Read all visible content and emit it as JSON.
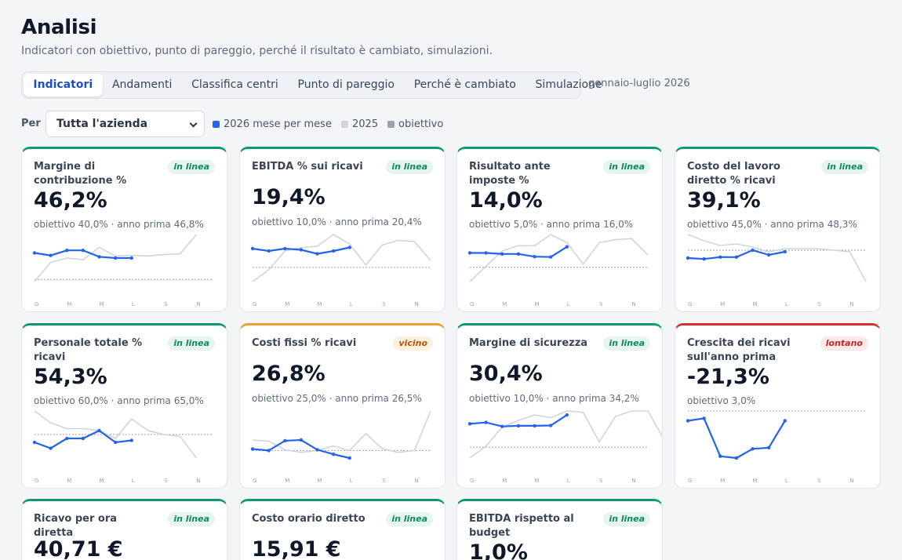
{
  "page": {
    "title": "Analisi",
    "subtitle": "Indicatori con obiettivo, punto di pareggio, perché il risultato è cambiato, simulazioni."
  },
  "tabs": [
    {
      "label": "Indicatori",
      "active": true
    },
    {
      "label": "Andamenti",
      "active": false
    },
    {
      "label": "Classifica centri",
      "active": false
    },
    {
      "label": "Punto di pareggio",
      "active": false
    },
    {
      "label": "Perché è cambiato",
      "active": false
    },
    {
      "label": "Simulazione",
      "active": false
    }
  ],
  "period": "gennaio-luglio 2026",
  "filter": {
    "label": "Per",
    "selected": "Tutta l'azienda"
  },
  "legend": [
    {
      "label": "2026 mese per mese",
      "color": "#2563eb"
    },
    {
      "label": "2025",
      "color": "#d1d6de"
    },
    {
      "label": "obiettivo",
      "color": "#9aa3af"
    }
  ],
  "month_labels": [
    "G",
    "M",
    "M",
    "L",
    "S",
    "N"
  ],
  "colors": {
    "current": "#2563eb",
    "previous": "#cfd5de",
    "target": "#9aa3af",
    "ok": "#0f9a6c",
    "warn": "#f0a026",
    "bad": "#d92e2e"
  },
  "cards": [
    {
      "name": "Margine di contribuzione %",
      "status": "in linea",
      "status_type": "ok",
      "value": "46,2%",
      "sub": "obiettivo 40,0% · anno prima 46,8%",
      "target": 40.0,
      "current": [
        46.2,
        45.6,
        46.8,
        46.8,
        45.3,
        45.0,
        45.0
      ],
      "previous": [
        39.5,
        44.0,
        45.0,
        44.6,
        47.5,
        45.5,
        45.6,
        45.5,
        45.8,
        46.0,
        50.5
      ]
    },
    {
      "name": "EBITDA % sui ricavi",
      "status": "in linea",
      "status_type": "ok",
      "value": "19,4%",
      "sub": "obiettivo 10,0% · anno prima 20,4%",
      "target": 10.0,
      "current": [
        18.0,
        17.0,
        18.0,
        17.5,
        15.8,
        17.0,
        18.5
      ],
      "previous": [
        4.0,
        9.0,
        17.0,
        18.5,
        19.0,
        24.0,
        20.0,
        11.0,
        19.5,
        21.5,
        21.0,
        13.0
      ]
    },
    {
      "name": "Risultato ante imposte %",
      "status": "in linea",
      "status_type": "ok",
      "value": "14,0%",
      "sub": "obiettivo 5,0% · anno prima 16,0%",
      "target": 5.0,
      "current": [
        12.0,
        12.0,
        11.5,
        11.5,
        10.2,
        10.0,
        15.0
      ],
      "previous": [
        -2.0,
        5.5,
        13.0,
        15.5,
        15.5,
        21.0,
        17.0,
        6.5,
        17.0,
        18.5,
        19.0,
        11.0
      ]
    },
    {
      "name": "Costo del lavoro diretto % ricavi",
      "status": "in linea",
      "status_type": "ok",
      "value": "39,1%",
      "sub": "obiettivo 45,0% · anno prima 48,3%",
      "target": 45.0,
      "current": [
        42.5,
        42.2,
        42.8,
        42.8,
        45.0,
        43.5,
        44.5
      ],
      "previous": [
        50.0,
        48.0,
        46.5,
        47.0,
        46.0,
        44.5,
        45.5,
        45.5,
        45.5,
        45.0,
        44.5,
        35.0
      ]
    },
    {
      "name": "Personale totale % ricavi",
      "status": "in linea",
      "status_type": "ok",
      "value": "54,3%",
      "sub": "obiettivo 60,0% · anno prima 65,0%",
      "target": 60.0,
      "current": [
        58.0,
        56.5,
        59.0,
        59.0,
        61.0,
        58.0,
        58.5
      ],
      "previous": [
        66.0,
        63.0,
        61.5,
        61.5,
        61.0,
        59.0,
        64.0,
        61.0,
        60.0,
        59.5,
        54.0
      ]
    },
    {
      "name": "Costi fissi % ricavi",
      "status": "vicino",
      "status_type": "warn",
      "value": "26,8%",
      "sub": "obiettivo 25,0% · anno prima 26,5%",
      "target": 25.0,
      "current": [
        25.4,
        25.0,
        27.6,
        27.8,
        25.2,
        24.0,
        23.0
      ],
      "previous": [
        27.8,
        27.5,
        25.2,
        24.5,
        25.0,
        26.2,
        25.0,
        29.5,
        25.5,
        24.5,
        25.0,
        35.5
      ]
    },
    {
      "name": "Margine di sicurezza",
      "status": "in linea",
      "status_type": "ok",
      "value": "30,4%",
      "sub": "obiettivo 10,0% · anno prima 34,2%",
      "target": 10.0,
      "current": [
        27.5,
        28.5,
        25.5,
        26.0,
        26.0,
        26.2,
        34.0
      ],
      "previous": [
        2.0,
        11.0,
        25.0,
        30.0,
        34.0,
        32.0,
        37.0,
        36.0,
        14.0,
        33.0,
        37.0,
        37.0,
        16.0
      ]
    },
    {
      "name": "Crescita dei ricavi sull'anno prima",
      "status": "lontano",
      "status_type": "bad",
      "value": "-21,3%",
      "sub": "obiettivo 3,0%",
      "target": 3.0,
      "current": [
        -5.0,
        -3.0,
        -34.0,
        -35.5,
        -28.0,
        -27.0,
        -5.0
      ],
      "previous": []
    },
    {
      "name": "Ricavo per ora diretta",
      "status": "in linea",
      "status_type": "ok",
      "value": "40,71 €",
      "sub": "",
      "target": null,
      "current": [],
      "previous": []
    },
    {
      "name": "Costo orario diretto",
      "status": "in linea",
      "status_type": "ok",
      "value": "15,91 €",
      "sub": "",
      "target": null,
      "current": [],
      "previous": []
    },
    {
      "name": "EBITDA rispetto al budget",
      "status": "in linea",
      "status_type": "ok",
      "value": "1,0%",
      "sub": "",
      "target": null,
      "current": [],
      "previous": []
    }
  ]
}
